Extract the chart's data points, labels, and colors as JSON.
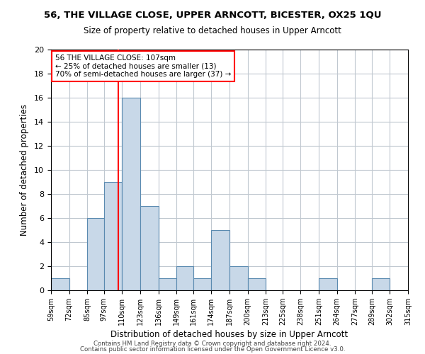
{
  "title": "56, THE VILLAGE CLOSE, UPPER ARNCOTT, BICESTER, OX25 1QU",
  "subtitle": "Size of property relative to detached houses in Upper Arncott",
  "xlabel": "Distribution of detached houses by size in Upper Arncott",
  "ylabel": "Number of detached properties",
  "bin_edges": [
    59,
    72,
    85,
    97,
    110,
    123,
    136,
    149,
    161,
    174,
    187,
    200,
    213,
    225,
    238,
    251,
    264,
    277,
    289,
    302,
    315
  ],
  "bar_heights": [
    1,
    0,
    6,
    9,
    16,
    7,
    1,
    2,
    1,
    5,
    2,
    1,
    0,
    0,
    0,
    1,
    0,
    0,
    1,
    0
  ],
  "bar_color": "#c8d8e8",
  "bar_edge_color": "#5a8ab0",
  "property_size": 107,
  "vline_color": "red",
  "annotation_text": "56 THE VILLAGE CLOSE: 107sqm\n← 25% of detached houses are smaller (13)\n70% of semi-detached houses are larger (37) →",
  "annotation_box_color": "white",
  "annotation_box_edge_color": "red",
  "ylim": [
    0,
    20
  ],
  "yticks": [
    0,
    2,
    4,
    6,
    8,
    10,
    12,
    14,
    16,
    18,
    20
  ],
  "tick_labels": [
    "59sqm",
    "72sqm",
    "85sqm",
    "97sqm",
    "110sqm",
    "123sqm",
    "136sqm",
    "149sqm",
    "161sqm",
    "174sqm",
    "187sqm",
    "200sqm",
    "213sqm",
    "225sqm",
    "238sqm",
    "251sqm",
    "264sqm",
    "277sqm",
    "289sqm",
    "302sqm",
    "315sqm"
  ],
  "footer_line1": "Contains HM Land Registry data © Crown copyright and database right 2024.",
  "footer_line2": "Contains public sector information licensed under the Open Government Licence v3.0.",
  "background_color": "#ffffff",
  "grid_color": "#c0c8d0"
}
